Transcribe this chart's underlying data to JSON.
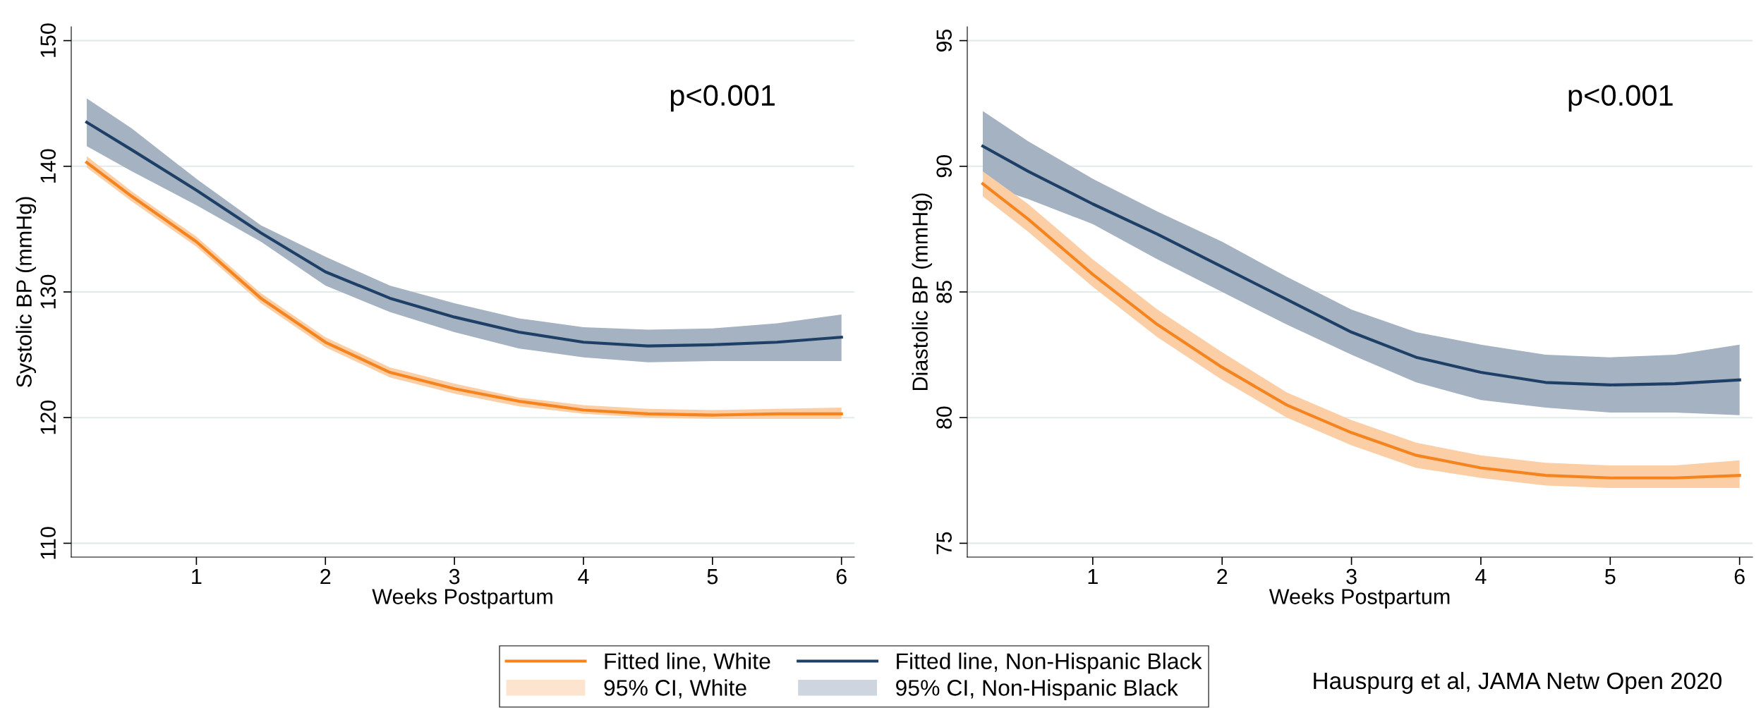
{
  "chart_data": [
    {
      "type": "line",
      "ylabel": "Systolic BP (mmHg)",
      "xlabel": "Weeks Postpartum",
      "xlim": [
        0.03,
        6.1
      ],
      "ylim": [
        108.9,
        151.1
      ],
      "xticks": [
        1,
        2,
        3,
        4,
        5,
        6
      ],
      "yticks": [
        110,
        120,
        130,
        140,
        150
      ],
      "grid": "y",
      "legend": "bottom",
      "marker": "none",
      "line_style": "solid",
      "annotations": [
        "p<0.001",
        "95% CI, Non-Hispanic Black",
        "95% CI, White"
      ],
      "x": [
        0.15,
        0.5,
        1,
        1.5,
        2,
        2.5,
        3,
        3.5,
        4,
        4.5,
        5,
        5.5,
        6
      ],
      "series": [
        {
          "name": "Fitted line, Non-Hispanic Black",
          "color": "#1e3f66",
          "values": [
            143.5,
            141.3,
            138.1,
            134.7,
            131.6,
            129.5,
            128.0,
            126.8,
            126.0,
            125.7,
            125.8,
            126.0,
            126.4
          ],
          "upper": [
            145.4,
            143.0,
            139.0,
            135.3,
            132.8,
            130.5,
            129.1,
            127.9,
            127.2,
            127.0,
            127.1,
            127.5,
            128.2
          ],
          "lower": [
            141.6,
            139.6,
            136.9,
            134.0,
            130.5,
            128.4,
            126.8,
            125.5,
            124.8,
            124.4,
            124.5,
            124.5,
            124.5
          ]
        },
        {
          "name": "Fitted line, White",
          "color": "#f5841f",
          "values": [
            140.3,
            137.6,
            134.0,
            129.5,
            126.0,
            123.6,
            122.3,
            121.3,
            120.6,
            120.3,
            120.2,
            120.3,
            120.3
          ],
          "upper": [
            140.8,
            138.0,
            134.4,
            129.9,
            126.4,
            124.0,
            122.7,
            121.6,
            121.0,
            120.7,
            120.6,
            120.7,
            120.8
          ],
          "lower": [
            139.9,
            137.2,
            133.6,
            129.1,
            125.6,
            123.2,
            121.9,
            120.9,
            120.3,
            120.0,
            119.9,
            119.9,
            119.9
          ]
        }
      ]
    },
    {
      "type": "line",
      "ylabel": "Diastolic BP (mmHg)",
      "xlabel": "Weeks Postpartum",
      "xlim": [
        0.03,
        6.1
      ],
      "ylim": [
        74.45,
        95.55
      ],
      "xticks": [
        1,
        2,
        3,
        4,
        5,
        6
      ],
      "yticks": [
        75,
        80,
        85,
        90,
        95
      ],
      "grid": "y",
      "marker": "none",
      "line_style": "solid",
      "annotations": [
        "p<0.001",
        "Hauspurg et al, JAMA Netw Open 2020"
      ],
      "x": [
        0.15,
        0.5,
        1,
        1.5,
        2,
        2.5,
        3,
        3.5,
        4,
        4.5,
        5,
        5.5,
        6
      ],
      "series": [
        {
          "color": "#1e3f66",
          "values": [
            90.8,
            89.8,
            88.5,
            87.3,
            86.0,
            84.7,
            83.4,
            82.4,
            81.8,
            81.4,
            81.3,
            81.35,
            81.5
          ],
          "upper": [
            92.2,
            91.0,
            89.5,
            88.2,
            87.0,
            85.6,
            84.3,
            83.4,
            82.9,
            82.5,
            82.4,
            82.5,
            82.9
          ],
          "lower": [
            89.3,
            88.7,
            87.7,
            86.3,
            85.0,
            83.7,
            82.5,
            81.4,
            80.7,
            80.4,
            80.2,
            80.2,
            80.1
          ]
        },
        {
          "color": "#f5841f",
          "values": [
            89.3,
            87.9,
            85.7,
            83.7,
            82.0,
            80.5,
            79.4,
            78.5,
            78.0,
            77.7,
            77.6,
            77.6,
            77.7
          ],
          "upper": [
            89.8,
            88.5,
            86.3,
            84.3,
            82.6,
            81.0,
            79.9,
            79.0,
            78.5,
            78.2,
            78.1,
            78.1,
            78.3
          ],
          "lower": [
            88.8,
            87.4,
            85.2,
            83.2,
            81.5,
            80.0,
            78.9,
            78.0,
            77.6,
            77.3,
            77.2,
            77.2,
            77.2
          ]
        }
      ]
    }
  ]
}
